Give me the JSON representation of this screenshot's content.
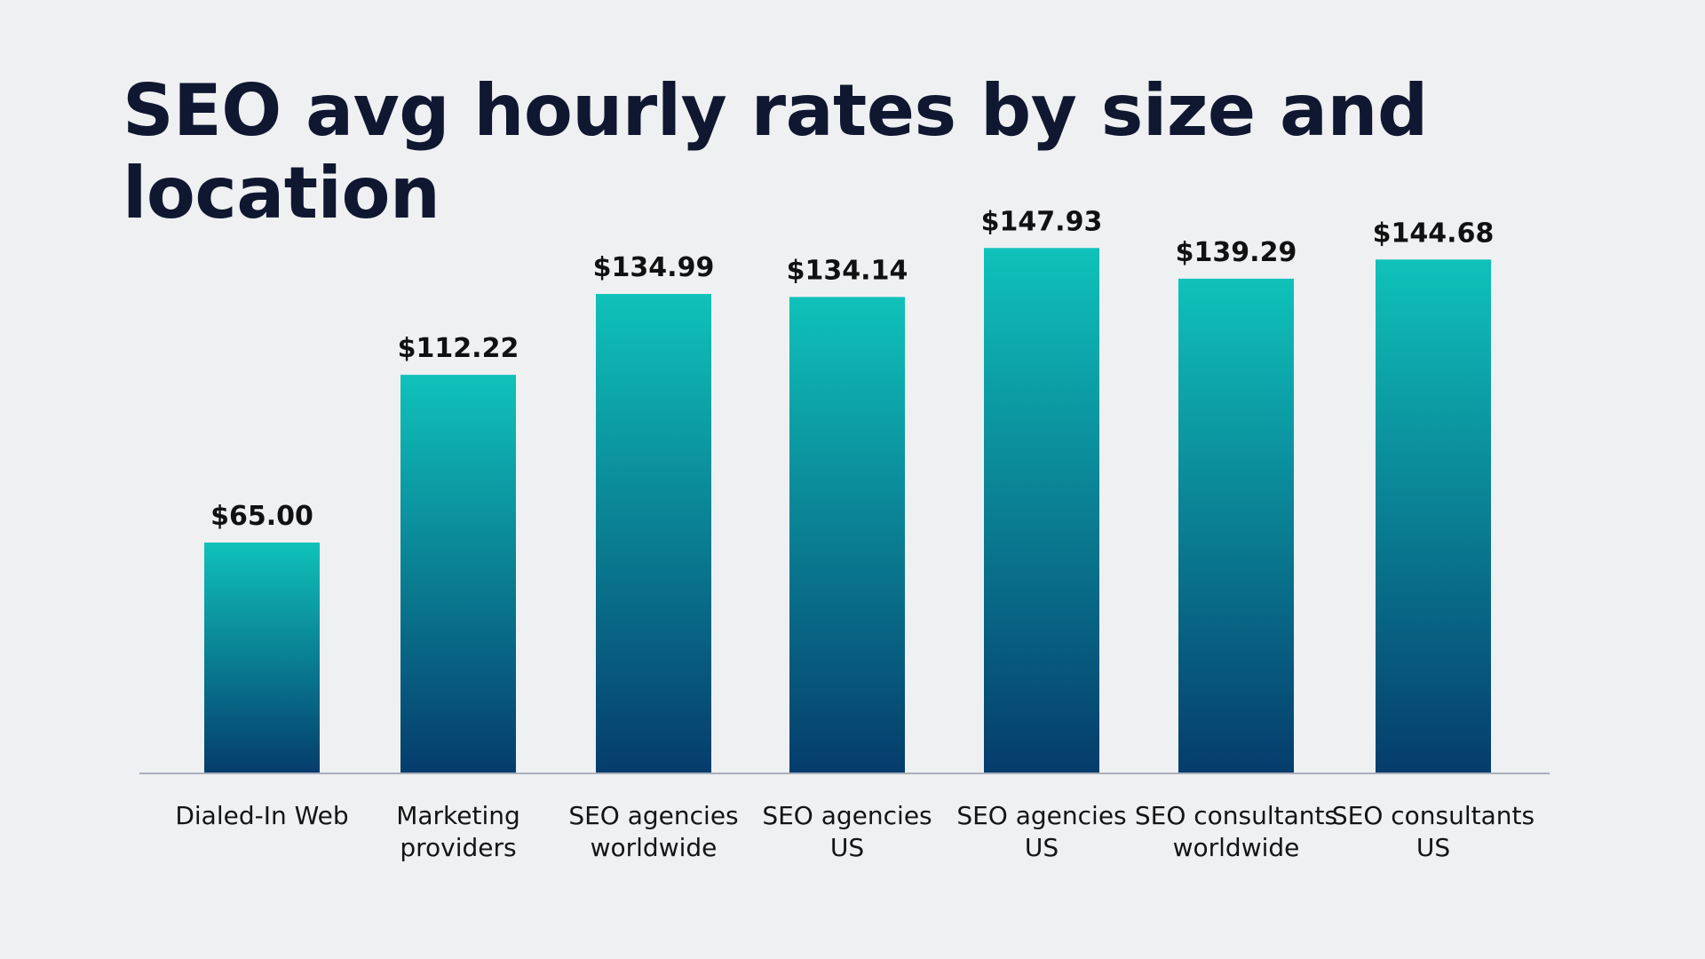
{
  "chart_data": {
    "type": "bar",
    "title": "SEO avg hourly rates by size and location",
    "categories": [
      [
        "Dialed-In Web"
      ],
      [
        "Marketing",
        "providers"
      ],
      [
        "SEO agencies",
        "worldwide"
      ],
      [
        "SEO agencies",
        "US"
      ],
      [
        "SEO agencies",
        "US"
      ],
      [
        "SEO consultants",
        "worldwide"
      ],
      [
        "SEO consultants",
        "US"
      ]
    ],
    "values": [
      65.0,
      112.22,
      134.99,
      134.14,
      147.93,
      139.29,
      144.68
    ],
    "data_labels": [
      "$65.00",
      "$112.22",
      "$134.99",
      "$134.14",
      "$147.93",
      "$139.29",
      "$144.68"
    ],
    "xlabel": "",
    "ylabel": "",
    "ylim": [
      0,
      150
    ],
    "grid": false,
    "legend": "none",
    "colors": {
      "bar_top": "#0fc2ba",
      "bar_bottom": "#053c6c",
      "axis": "#a9b0bb",
      "background": "#eff0f2",
      "title": "#0f1830"
    }
  }
}
